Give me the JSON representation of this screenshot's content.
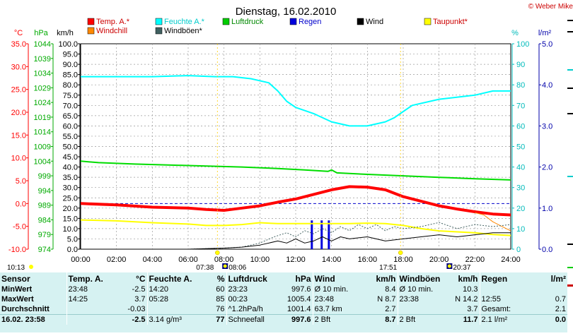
{
  "header": {
    "title": "Dienstag, 16.02.2010",
    "copyright": "© Weber Mike"
  },
  "units": {
    "temp": "°C",
    "pressure": "hPa",
    "speed": "km/h",
    "humidity": "%",
    "rain": "l/m²"
  },
  "legend": [
    {
      "name": "Temp. A.*",
      "color": "#ff0000",
      "text_color": "#cc0000"
    },
    {
      "name": "Feuchte A.*",
      "color": "#00ffff",
      "text_color": "#00cccc"
    },
    {
      "name": "Luftdruck",
      "color": "#00cc00",
      "text_color": "#008800"
    },
    {
      "name": "Regen",
      "color": "#0000dd",
      "text_color": "#0000cc"
    },
    {
      "name": "Wind",
      "color": "#000000",
      "text_color": "#000000"
    },
    {
      "name": "Taupunkt*",
      "color": "#ffff00",
      "text_color": "#cc0000"
    },
    {
      "name": "Windchill",
      "color": "#ff8800",
      "text_color": "#cc0000"
    },
    {
      "name": "Windböen*",
      "color": "#406060",
      "text_color": "#000000"
    }
  ],
  "chart_data": {
    "type": "line",
    "title": "Dienstag, 16.02.2010",
    "x_ticks": [
      "00:00",
      "02:00",
      "04:00",
      "06:00",
      "08:00",
      "10:00",
      "12:00",
      "14:00",
      "16:00",
      "18:00",
      "20:00",
      "22:00",
      "24:00"
    ],
    "xlim": [
      0,
      24
    ],
    "axes": {
      "temp": {
        "label": "°C",
        "ticks": [
          "35.0",
          "30.0",
          "25.0",
          "20.0",
          "15.0",
          "10.0",
          "5.0",
          "0.0",
          "-5.0",
          "-10.0"
        ],
        "range": [
          -10,
          35
        ],
        "color": "#ff0000"
      },
      "pressure": {
        "label": "hPa",
        "ticks": [
          "1044",
          "1039",
          "1034",
          "1029",
          "1024",
          "1019",
          "1014",
          "1009",
          "1004",
          "999",
          "994",
          "989",
          "984",
          "979",
          "974"
        ],
        "range": [
          974,
          1044
        ],
        "color": "#00aa00"
      },
      "speed": {
        "label": "km/h",
        "ticks": [
          "100.0",
          "95.0",
          "90.0",
          "85.0",
          "80.0",
          "75.0",
          "70.0",
          "65.0",
          "60.0",
          "55.0",
          "50.0",
          "45.0",
          "40.0",
          "35.0",
          "30.0",
          "25.0",
          "20.0",
          "15.0",
          "10.0",
          "5.0",
          "0.0"
        ],
        "range": [
          0,
          100
        ],
        "color": "#000000"
      },
      "humidity": {
        "label": "%",
        "ticks": [
          "100",
          "90",
          "80",
          "70",
          "60",
          "50",
          "40",
          "30",
          "20",
          "10",
          "0"
        ],
        "range": [
          0,
          100
        ],
        "color": "#00bbbb"
      },
      "rain": {
        "label": "l/m²",
        "ticks": [
          "5.0",
          "4.0",
          "3.0",
          "2.0",
          "1.0",
          "0.0"
        ],
        "range": [
          0,
          5
        ],
        "color": "#0000aa"
      }
    },
    "reference_line": {
      "axis": "temp",
      "value": 0.0,
      "color": "#0000cc"
    },
    "series": [
      {
        "name": "Feuchte A.*",
        "axis": "humidity",
        "color": "#00ffff",
        "width": 2,
        "points": [
          [
            0,
            84
          ],
          [
            2,
            84
          ],
          [
            4,
            84
          ],
          [
            6,
            84.5
          ],
          [
            7.5,
            84
          ],
          [
            8.5,
            84
          ],
          [
            9.5,
            83
          ],
          [
            10.5,
            81
          ],
          [
            11,
            77
          ],
          [
            11.5,
            72
          ],
          [
            12,
            69
          ],
          [
            13,
            66
          ],
          [
            14,
            62
          ],
          [
            15,
            60
          ],
          [
            16,
            60
          ],
          [
            17,
            62
          ],
          [
            17.5,
            64
          ],
          [
            18,
            67
          ],
          [
            18.5,
            70
          ],
          [
            20,
            73
          ],
          [
            22,
            75
          ],
          [
            23,
            77
          ],
          [
            24,
            77
          ]
        ]
      },
      {
        "name": "Luftdruck",
        "axis": "pressure",
        "color": "#00dd00",
        "width": 2,
        "points": [
          [
            0,
            1004
          ],
          [
            1,
            1003.5
          ],
          [
            3,
            1003
          ],
          [
            6,
            1002.5
          ],
          [
            9,
            1002
          ],
          [
            11,
            1001.5
          ],
          [
            12.5,
            1001
          ],
          [
            13.8,
            1000.5
          ],
          [
            14,
            1001
          ],
          [
            14.3,
            1000
          ],
          [
            16,
            999.5
          ],
          [
            18,
            999
          ],
          [
            20,
            998.5
          ],
          [
            22,
            998
          ],
          [
            24,
            997.6
          ]
        ]
      },
      {
        "name": "Temp. A.*",
        "axis": "temp",
        "color": "#ff0000",
        "width": 4,
        "points": [
          [
            0,
            0.0
          ],
          [
            2,
            -0.3
          ],
          [
            4,
            -0.8
          ],
          [
            6,
            -1.0
          ],
          [
            7,
            -1.3
          ],
          [
            8,
            -1.5
          ],
          [
            9,
            -1.0
          ],
          [
            10,
            -0.5
          ],
          [
            11,
            0.3
          ],
          [
            12,
            1.0
          ],
          [
            13,
            2.0
          ],
          [
            14,
            3.0
          ],
          [
            15,
            3.7
          ],
          [
            16,
            3.6
          ],
          [
            17,
            3.0
          ],
          [
            18,
            1.5
          ],
          [
            19,
            0.5
          ],
          [
            20,
            -0.5
          ],
          [
            21,
            -1.2
          ],
          [
            22,
            -1.8
          ],
          [
            23,
            -2.3
          ],
          [
            24,
            -2.5
          ]
        ]
      },
      {
        "name": "Taupunkt*",
        "axis": "temp",
        "color": "#ffff00",
        "width": 2,
        "points": [
          [
            0,
            -3.6
          ],
          [
            2,
            -3.8
          ],
          [
            4,
            -4.2
          ],
          [
            6,
            -4.5
          ],
          [
            7,
            -4.8
          ],
          [
            8,
            -4.8
          ],
          [
            9,
            -4.6
          ],
          [
            10,
            -4.2
          ],
          [
            11,
            -4.4
          ],
          [
            12,
            -4.4
          ],
          [
            13,
            -4.4
          ],
          [
            14,
            -4.4
          ],
          [
            15,
            -4.4
          ],
          [
            16,
            -4.3
          ],
          [
            17,
            -4.4
          ],
          [
            18,
            -4.8
          ],
          [
            19,
            -5.5
          ],
          [
            20,
            -6.0
          ],
          [
            22,
            -6.4
          ],
          [
            23,
            -6.8
          ],
          [
            24,
            -7.0
          ]
        ]
      },
      {
        "name": "Windchill",
        "axis": "temp",
        "color": "#ff8800",
        "width": 1,
        "points": [
          [
            22,
            -2.0
          ],
          [
            22.5,
            -2.5
          ],
          [
            23,
            -4.0
          ],
          [
            23.5,
            -5.0
          ],
          [
            24,
            -6.0
          ]
        ]
      },
      {
        "name": "Windböen*",
        "axis": "speed",
        "color": "#406060",
        "width": 1,
        "dash": "2,2",
        "points": [
          [
            0,
            0
          ],
          [
            6,
            0
          ],
          [
            8,
            0.5
          ],
          [
            9,
            1
          ],
          [
            10,
            3
          ],
          [
            10.8,
            6
          ],
          [
            11.5,
            8
          ],
          [
            12,
            6
          ],
          [
            12.5,
            9
          ],
          [
            13,
            7.5
          ],
          [
            13.5,
            10
          ],
          [
            14,
            8
          ],
          [
            14.5,
            11
          ],
          [
            15,
            9
          ],
          [
            15.5,
            12
          ],
          [
            16,
            10
          ],
          [
            16.5,
            12
          ],
          [
            17,
            9
          ],
          [
            17.5,
            11
          ],
          [
            18,
            10
          ],
          [
            19,
            11
          ],
          [
            20,
            13
          ],
          [
            21,
            10
          ],
          [
            22,
            12
          ],
          [
            23,
            11
          ],
          [
            24,
            12
          ]
        ]
      },
      {
        "name": "Wind",
        "axis": "speed",
        "color": "#000000",
        "width": 1,
        "points": [
          [
            0,
            0
          ],
          [
            6,
            0
          ],
          [
            8,
            0.5
          ],
          [
            9,
            1
          ],
          [
            10,
            2
          ],
          [
            11,
            4
          ],
          [
            11.5,
            3
          ],
          [
            12,
            5
          ],
          [
            12.5,
            3
          ],
          [
            13,
            4
          ],
          [
            13.5,
            6
          ],
          [
            14,
            4
          ],
          [
            14.5,
            6
          ],
          [
            15,
            5
          ],
          [
            16,
            6
          ],
          [
            17,
            4
          ],
          [
            18,
            5
          ],
          [
            19,
            6
          ],
          [
            20,
            7
          ],
          [
            21,
            6
          ],
          [
            22,
            7
          ],
          [
            23,
            8
          ],
          [
            24,
            8
          ]
        ]
      }
    ],
    "rain_bars": {
      "axis": "rain",
      "color": "#0000dd",
      "times": [
        12.9,
        13.45,
        13.85
      ],
      "values": [
        0.7,
        0.7,
        0.7
      ]
    },
    "markers": [
      {
        "time": 7.63,
        "label": "07:38",
        "type": "sunrise"
      },
      {
        "time": 8.1,
        "label": "08:06",
        "type": "moonrise"
      },
      {
        "time": 17.85,
        "label": "17:51",
        "type": "sunset"
      },
      {
        "time": 20.62,
        "label": "20:37",
        "type": "moonset"
      }
    ],
    "current_time_label": "10:13"
  },
  "stats": {
    "headers": [
      "Sensor",
      "Temp. A.",
      "°C",
      "Feuchte A.",
      "%",
      "Luftdruck",
      "hPa",
      "Wind",
      "km/h",
      "Windböen",
      "km/h",
      "Regen",
      "l/m²"
    ],
    "rows": [
      [
        "MinWert",
        "23:48",
        "-2.5",
        "14:20",
        "60",
        "23:23",
        "997.6",
        "Ø 10 min.",
        "8.4",
        "Ø 10 min.",
        "10.3",
        "",
        ""
      ],
      [
        "MaxWert",
        "14:25",
        "3.7",
        "05:28",
        "85",
        "00:23",
        "1005.4",
        "23:48",
        "N 8.7",
        "23:38",
        "N 14.2",
        "12:55",
        "0.7"
      ],
      [
        "Durchschnitt",
        "",
        "-0.03",
        "",
        "76",
        "^1.2hPa/h",
        "1001.4",
        "63.7 km",
        "2.7",
        "",
        "3.7",
        "Gesamt:",
        "2.1"
      ],
      [
        "16.02. 23:58",
        "",
        "-2.5",
        "3.14 g/m³",
        "77",
        "Schneefall",
        "997.6",
        "2 Bft",
        "8.7",
        "2 Bft",
        "11.7",
        "2.1 l/m²",
        "0.0"
      ]
    ]
  }
}
